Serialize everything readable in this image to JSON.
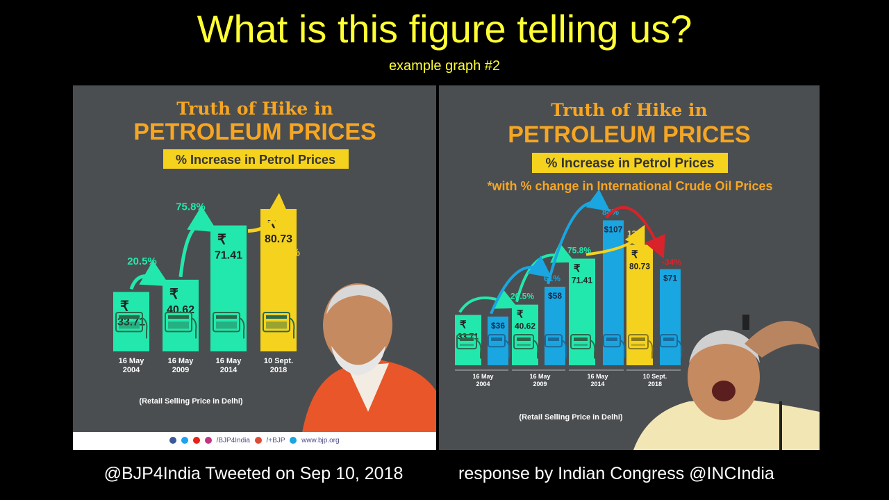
{
  "title": "What is this figure telling us?",
  "subtitle": "example graph #2",
  "captions": {
    "left": "@BJP4India Tweeted on Sep 10, 2018",
    "right": "response by Indian Congress @INCIndia"
  },
  "colors": {
    "petrol_bar": "#23e8ae",
    "petrol_bar_highlight": "#f5d21e",
    "crude_bar": "#1aa6e0",
    "crude_down": "#d8232a",
    "heading": "#f6a623",
    "panel_bg": "#4b4e50",
    "title_yellow": "#ffff33"
  },
  "chart_data": [
    {
      "type": "bar",
      "header_small": "Truth of Hike in",
      "header_big": "PETROLEUM PRICES",
      "subheader": "% Increase in Petrol Prices",
      "note": "",
      "categories": [
        "16 May\n2004",
        "16 May\n2009",
        "16 May\n2014",
        "10 Sept.\n2018"
      ],
      "categories_line1": [
        "16 May",
        "16 May",
        "16 May",
        "10 Sept."
      ],
      "categories_line2": [
        "2004",
        "2009",
        "2014",
        "2018"
      ],
      "series": [
        {
          "values": [
            33.71,
            40.62,
            71.41,
            80.73
          ],
          "value_labels": [
            "33.71",
            "40.62",
            "71.41",
            "80.73"
          ],
          "currency": "₹"
        }
      ],
      "changes": [
        "20.5%",
        "75.8%",
        "13%"
      ],
      "footnote": "(Retail Selling Price in Delhi)",
      "footer": {
        "handle": "/BJP4India",
        "gplus": "/+BJP",
        "website": "www.bjp.org"
      }
    },
    {
      "type": "bar",
      "header_small": "Truth of Hike in",
      "header_big": "PETROLEUM PRICES",
      "subheader": "% Increase in Petrol Prices",
      "note": "*with % change in International Crude Oil Prices",
      "categories": [
        "16 May\n2004",
        "16 May\n2009",
        "16 May\n2014",
        "10 Sept.\n2018"
      ],
      "categories_line1": [
        "16 May",
        "16 May",
        "16 May",
        "10 Sept."
      ],
      "categories_line2": [
        "2004",
        "2009",
        "2014",
        "2018"
      ],
      "series": [
        {
          "values": [
            33.71,
            40.62,
            71.41,
            80.73
          ],
          "value_labels": [
            "33.71",
            "40.62",
            "71.41",
            "80.73"
          ],
          "currency": "₹",
          "changes": [
            "20.5%",
            "75.8%",
            "13%"
          ]
        },
        {
          "values": [
            36,
            58,
            107,
            71
          ],
          "value_labels": [
            "$36",
            "$58",
            "$107",
            "$71"
          ],
          "currency": "$",
          "changes": [
            "61%",
            "84%",
            "-34%"
          ]
        }
      ],
      "footnote": "(Retail Selling Price in Delhi)"
    }
  ]
}
